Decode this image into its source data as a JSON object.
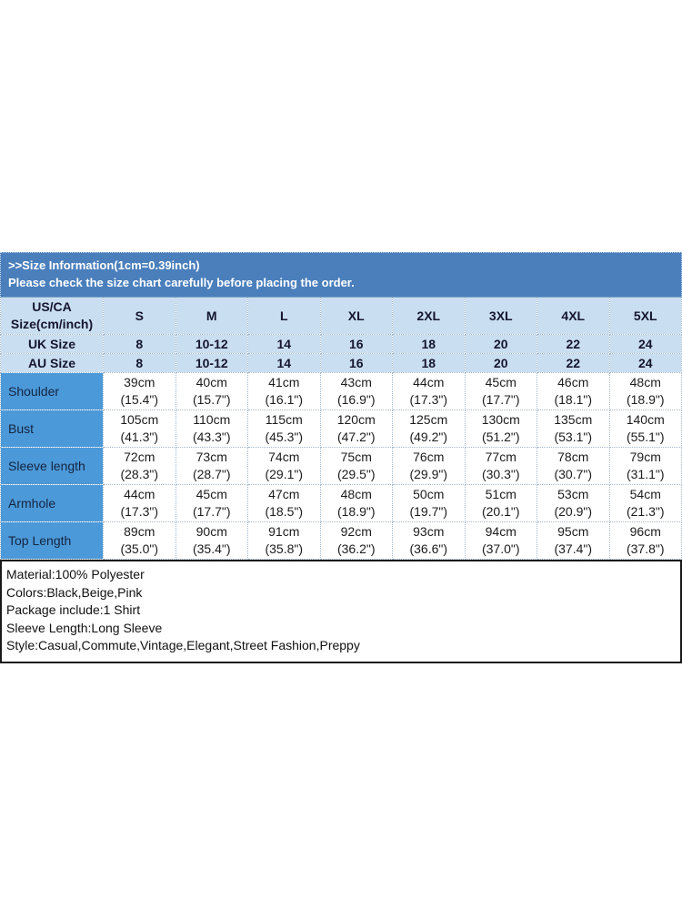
{
  "banner": {
    "title": ">>Size Information(1cm=0.39inch)",
    "subtitle": "Please check the size chart carefully before placing the order."
  },
  "size_table": {
    "corner_header": [
      "US/CA",
      "Size(cm/inch)"
    ],
    "size_columns": [
      "S",
      "M",
      "L",
      "XL",
      "2XL",
      "3XL",
      "4XL",
      "5XL"
    ],
    "region_rows": [
      {
        "label": "UK Size",
        "values": [
          "8",
          "10-12",
          "14",
          "16",
          "18",
          "20",
          "22",
          "24"
        ]
      },
      {
        "label": "AU Size",
        "values": [
          "8",
          "10-12",
          "14",
          "16",
          "18",
          "20",
          "22",
          "24"
        ]
      }
    ],
    "measurement_rows": [
      {
        "label": "Shoulder",
        "cm": [
          "39cm",
          "40cm",
          "41cm",
          "43cm",
          "44cm",
          "45cm",
          "46cm",
          "48cm"
        ],
        "inch": [
          "(15.4\")",
          "(15.7\")",
          "(16.1\")",
          "(16.9\")",
          "(17.3\")",
          "(17.7\")",
          "(18.1\")",
          "(18.9\")"
        ]
      },
      {
        "label": "Bust",
        "cm": [
          "105cm",
          "110cm",
          "115cm",
          "120cm",
          "125cm",
          "130cm",
          "135cm",
          "140cm"
        ],
        "inch": [
          "(41.3\")",
          "(43.3\")",
          "(45.3\")",
          "(47.2\")",
          "(49.2\")",
          "(51.2\")",
          "(53.1\")",
          "(55.1\")"
        ]
      },
      {
        "label": "Sleeve length",
        "cm": [
          "72cm",
          "73cm",
          "74cm",
          "75cm",
          "76cm",
          "77cm",
          "78cm",
          "79cm"
        ],
        "inch": [
          "(28.3\")",
          "(28.7\")",
          "(29.1\")",
          "(29.5\")",
          "(29.9\")",
          "(30.3\")",
          "(30.7\")",
          "(31.1\")"
        ]
      },
      {
        "label": "Armhole",
        "cm": [
          "44cm",
          "45cm",
          "47cm",
          "48cm",
          "50cm",
          "51cm",
          "53cm",
          "54cm"
        ],
        "inch": [
          "(17.3\")",
          "(17.7\")",
          "(18.5\")",
          "(18.9\")",
          "(19.7\")",
          "(20.1\")",
          "(20.9\")",
          "(21.3\")"
        ]
      },
      {
        "label": "Top Length",
        "cm": [
          "89cm",
          "90cm",
          "91cm",
          "92cm",
          "93cm",
          "94cm",
          "95cm",
          "96cm"
        ],
        "inch": [
          "(35.0\")",
          "(35.4\")",
          "(35.8\")",
          "(36.2\")",
          "(36.6\")",
          "(37.0\")",
          "(37.4\")",
          "(37.8\")"
        ]
      }
    ]
  },
  "product_details": {
    "lines": [
      "Material:100% Polyester",
      "Colors:Black,Beige,Pink",
      "Package include:1 Shirt",
      "Sleeve Length:Long Sleeve",
      "Style:Casual,Commute,Vintage,Elegant,Street Fashion,Preppy"
    ]
  },
  "colors": {
    "banner_bg": "#4a7fbc",
    "header_bg": "#c9def0",
    "row_label_bg": "#4c99d9",
    "banner_text": "#ffffff",
    "header_text": "#15152e",
    "body_text": "#1c1c1c",
    "cell_border": "#a3b9cc",
    "details_border": "#1a1a1a"
  }
}
